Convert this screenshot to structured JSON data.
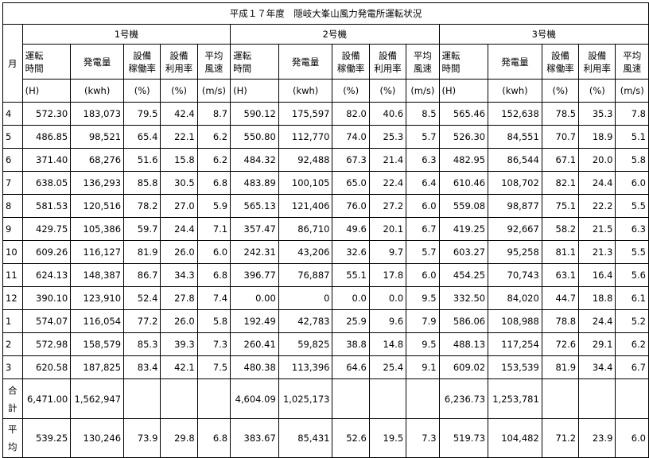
{
  "title": "平成１７年度　隠岐大峯山風力発電所運転状況",
  "month_label": "月",
  "units": [
    "1号機",
    "2号機",
    "3号機"
  ],
  "col_headers": [
    "運転\n時間",
    "発電量",
    "設備\n稼働率",
    "設備\n利用率",
    "平均\n風速"
  ],
  "col_units": [
    "(H)",
    "(kwh)",
    "(%)",
    "(%)",
    "(m/s)"
  ],
  "rows": [
    {
      "month": "4",
      "values": [
        "572.30",
        "183,073",
        "79.5",
        "42.4",
        "8.7",
        "590.12",
        "175,597",
        "82.0",
        "40.6",
        "8.5",
        "565.46",
        "152,638",
        "78.5",
        "35.3",
        "7.8"
      ]
    },
    {
      "month": "5",
      "values": [
        "486.85",
        "98,521",
        "65.4",
        "22.1",
        "6.2",
        "550.80",
        "112,770",
        "74.0",
        "25.3",
        "5.7",
        "526.30",
        "84,551",
        "70.7",
        "18.9",
        "5.1"
      ]
    },
    {
      "month": "6",
      "values": [
        "371.40",
        "68,276",
        "51.6",
        "15.8",
        "6.2",
        "484.32",
        "92,488",
        "67.3",
        "21.4",
        "6.3",
        "482.95",
        "86,544",
        "67.1",
        "20.0",
        "5.8"
      ]
    },
    {
      "month": "7",
      "values": [
        "638.05",
        "136,293",
        "85.8",
        "30.5",
        "6.8",
        "483.89",
        "100,105",
        "65.0",
        "22.4",
        "6.4",
        "610.46",
        "108,702",
        "82.1",
        "24.4",
        "6.0"
      ]
    },
    {
      "month": "8",
      "values": [
        "581.53",
        "120,516",
        "78.2",
        "27.0",
        "5.9",
        "565.13",
        "121,406",
        "76.0",
        "27.2",
        "6.0",
        "559.08",
        "98,877",
        "75.1",
        "22.2",
        "5.5"
      ]
    },
    {
      "month": "9",
      "values": [
        "429.75",
        "105,386",
        "59.7",
        "24.4",
        "7.1",
        "357.47",
        "86,710",
        "49.6",
        "20.1",
        "6.7",
        "419.25",
        "92,667",
        "58.2",
        "21.5",
        "6.3"
      ]
    },
    {
      "month": "10",
      "values": [
        "609.26",
        "116,127",
        "81.9",
        "26.0",
        "6.0",
        "242.31",
        "43,206",
        "32.6",
        "9.7",
        "5.7",
        "603.27",
        "95,258",
        "81.1",
        "21.3",
        "5.5"
      ]
    },
    {
      "month": "11",
      "values": [
        "624.13",
        "148,387",
        "86.7",
        "34.3",
        "6.8",
        "396.77",
        "76,887",
        "55.1",
        "17.8",
        "6.0",
        "454.25",
        "70,743",
        "63.1",
        "16.4",
        "5.6"
      ]
    },
    {
      "month": "12",
      "values": [
        "390.10",
        "123,910",
        "52.4",
        "27.8",
        "7.4",
        "0.00",
        "0",
        "0.0",
        "0.0",
        "9.5",
        "332.50",
        "84,020",
        "44.7",
        "18.8",
        "6.1"
      ]
    },
    {
      "month": "1",
      "values": [
        "574.07",
        "116,054",
        "77.2",
        "26.0",
        "5.8",
        "192.49",
        "42,783",
        "25.9",
        "9.6",
        "7.9",
        "586.06",
        "108,988",
        "78.8",
        "24.4",
        "5.2"
      ]
    },
    {
      "month": "2",
      "values": [
        "572.98",
        "158,579",
        "85.3",
        "39.3",
        "7.3",
        "260.41",
        "59,825",
        "38.8",
        "14.8",
        "9.5",
        "488.13",
        "117,254",
        "72.6",
        "29.1",
        "6.2"
      ]
    },
    {
      "month": "3",
      "values": [
        "620.58",
        "187,825",
        "83.4",
        "42.1",
        "7.5",
        "480.38",
        "113,396",
        "64.6",
        "25.4",
        "9.1",
        "609.02",
        "153,539",
        "81.9",
        "34.4",
        "6.7"
      ]
    }
  ],
  "total": {
    "label": "合\n計",
    "values": [
      "6,471.00",
      "1,562,947",
      "",
      "",
      "",
      "4,604.09",
      "1,025,173",
      "",
      "",
      "",
      "6,236.73",
      "1,253,781",
      "",
      "",
      ""
    ]
  },
  "average": {
    "label": "平\n均",
    "values": [
      "539.25",
      "130,246",
      "73.9",
      "29.8",
      "6.8",
      "383.67",
      "85,431",
      "52.6",
      "19.5",
      "7.3",
      "519.73",
      "104,482",
      "71.2",
      "23.9",
      "6.0"
    ]
  }
}
